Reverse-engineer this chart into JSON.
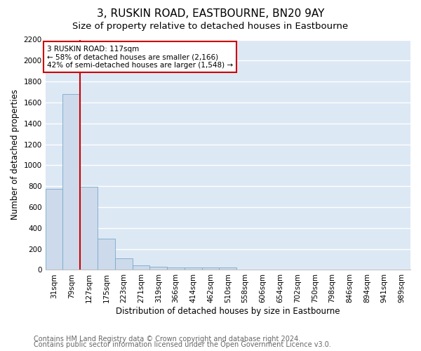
{
  "title": "3, RUSKIN ROAD, EASTBOURNE, BN20 9AY",
  "subtitle": "Size of property relative to detached houses in Eastbourne",
  "xlabel": "Distribution of detached houses by size in Eastbourne",
  "ylabel": "Number of detached properties",
  "footnote1": "Contains HM Land Registry data © Crown copyright and database right 2024.",
  "footnote2": "Contains public sector information licensed under the Open Government Licence v3.0.",
  "categories": [
    "31sqm",
    "79sqm",
    "127sqm",
    "175sqm",
    "223sqm",
    "271sqm",
    "319sqm",
    "366sqm",
    "414sqm",
    "462sqm",
    "510sqm",
    "558sqm",
    "606sqm",
    "654sqm",
    "702sqm",
    "750sqm",
    "798sqm",
    "846sqm",
    "894sqm",
    "941sqm",
    "989sqm"
  ],
  "values": [
    775,
    1680,
    795,
    300,
    110,
    40,
    28,
    22,
    20,
    20,
    25,
    0,
    0,
    0,
    0,
    0,
    0,
    0,
    0,
    0,
    0
  ],
  "bar_color": "#ccdaeb",
  "bar_edge_color": "#7aaac8",
  "background_color": "#dde8f5",
  "grid_color": "#ffffff",
  "red_line_x": 1.5,
  "red_line_color": "#cc0000",
  "annotation_text": "3 RUSKIN ROAD: 117sqm\n← 58% of detached houses are smaller (2,166)\n42% of semi-detached houses are larger (1,548) →",
  "annotation_box_color": "#cc0000",
  "annotation_face_color": "#ffffff",
  "ylim": [
    0,
    2200
  ],
  "yticks": [
    0,
    200,
    400,
    600,
    800,
    1000,
    1200,
    1400,
    1600,
    1800,
    2000,
    2200
  ],
  "title_fontsize": 11,
  "subtitle_fontsize": 9.5,
  "axis_fontsize": 8.5,
  "tick_fontsize": 7.5,
  "footnote_fontsize": 7
}
